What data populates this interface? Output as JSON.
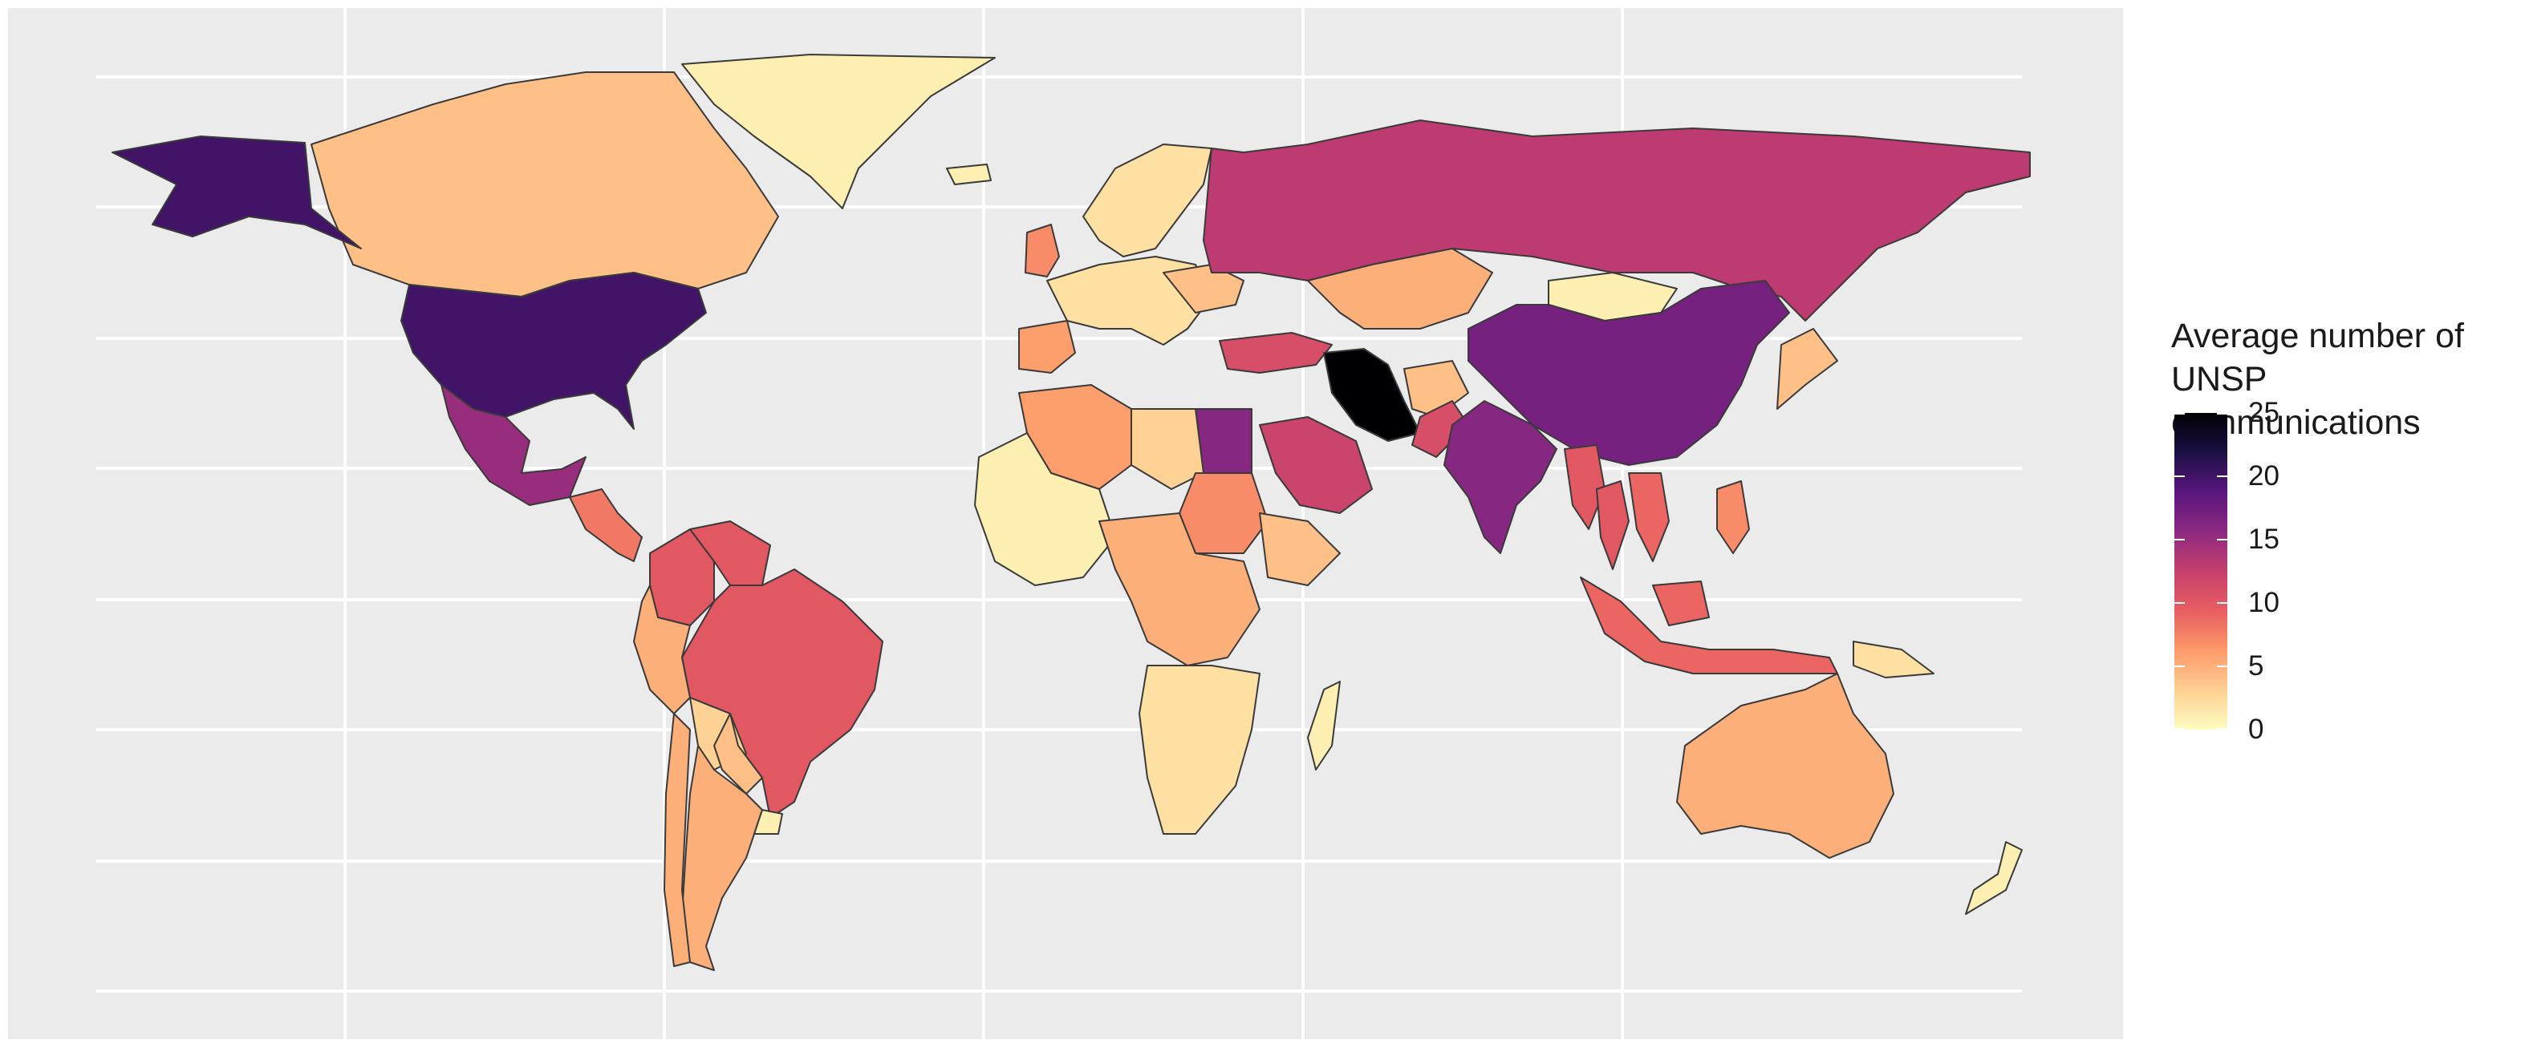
{
  "legend": {
    "title_line1": "Average number of",
    "title_line2": "UNSP communications",
    "ticks": [
      "0",
      "5",
      "10",
      "15",
      "20",
      "25"
    ],
    "range": [
      0,
      25
    ]
  },
  "colors": {
    "panel_background": "#ebebeb",
    "gridline": "#ffffff",
    "border": "#3a3a3a",
    "scale": [
      "#fcfdbf",
      "#fecf92",
      "#fd9a6a",
      "#e85e61",
      "#c63f6d",
      "#8c2981",
      "#5a167e",
      "#1c1044",
      "#000004"
    ]
  },
  "regions": [
    {
      "name": "Greenland",
      "value": 1
    },
    {
      "name": "Canada",
      "value": 4
    },
    {
      "name": "Alaska",
      "value": 20
    },
    {
      "name": "United States",
      "value": 20
    },
    {
      "name": "Mexico",
      "value": 15
    },
    {
      "name": "Central America",
      "value": 8
    },
    {
      "name": "Colombia",
      "value": 10
    },
    {
      "name": "Venezuela",
      "value": 10
    },
    {
      "name": "Brazil",
      "value": 10
    },
    {
      "name": "Peru",
      "value": 5
    },
    {
      "name": "Bolivia",
      "value": 3
    },
    {
      "name": "Paraguay",
      "value": 4
    },
    {
      "name": "Argentina",
      "value": 5
    },
    {
      "name": "Chile",
      "value": 5
    },
    {
      "name": "Uruguay",
      "value": 1
    },
    {
      "name": "Iceland",
      "value": 1
    },
    {
      "name": "Scandinavia",
      "value": 2
    },
    {
      "name": "United Kingdom",
      "value": 7
    },
    {
      "name": "Western Europe",
      "value": 2
    },
    {
      "name": "Iberia",
      "value": 6
    },
    {
      "name": "Ukraine",
      "value": 4
    },
    {
      "name": "Russia",
      "value": 13
    },
    {
      "name": "Kazakhstan",
      "value": 5
    },
    {
      "name": "Mongolia",
      "value": 1
    },
    {
      "name": "China",
      "value": 17
    },
    {
      "name": "Japan",
      "value": 4
    },
    {
      "name": "Turkey",
      "value": 11
    },
    {
      "name": "Iran",
      "value": 25
    },
    {
      "name": "Afghanistan",
      "value": 4
    },
    {
      "name": "Pakistan",
      "value": 11
    },
    {
      "name": "India",
      "value": 16
    },
    {
      "name": "Saudi Arabia",
      "value": 12
    },
    {
      "name": "Egypt",
      "value": 16
    },
    {
      "name": "Algeria",
      "value": 6
    },
    {
      "name": "Libya",
      "value": 3
    },
    {
      "name": "West Africa",
      "value": 1
    },
    {
      "name": "Sudan",
      "value": 7
    },
    {
      "name": "Ethiopia",
      "value": 4
    },
    {
      "name": "Central Africa",
      "value": 5
    },
    {
      "name": "Southern Africa",
      "value": 2
    },
    {
      "name": "Madagascar",
      "value": 1
    },
    {
      "name": "Myanmar",
      "value": 10
    },
    {
      "name": "Thailand",
      "value": 10
    },
    {
      "name": "Vietnam",
      "value": 9
    },
    {
      "name": "Philippines",
      "value": 7
    },
    {
      "name": "Malaysia",
      "value": 9
    },
    {
      "name": "Indonesia",
      "value": 9
    },
    {
      "name": "Papua New Guinea",
      "value": 2
    },
    {
      "name": "Australia",
      "value": 5
    },
    {
      "name": "New Zealand",
      "value": 1
    }
  ]
}
